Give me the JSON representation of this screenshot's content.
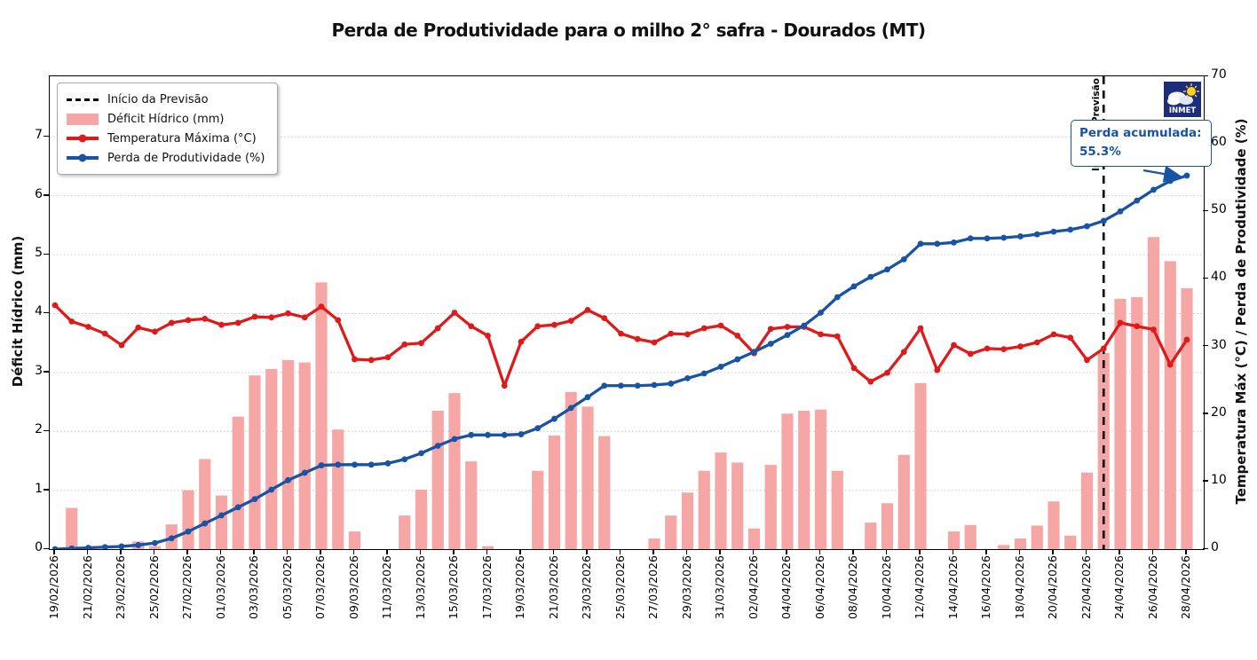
{
  "title": "Perda de Produtividade para o milho 2° safra - Dourados (MT)",
  "legend": {
    "forecast_label": "Início da Previsão",
    "deficit_label": "Déficit Hídrico (mm)",
    "temp_label": "Temperatura Máxima (°C)",
    "loss_label": "Perda de Produtividade (%)"
  },
  "axes": {
    "left_label": "Déficit Hídrico (mm)",
    "right_label": "Temperatura Máx (°C) / Perda de Produtividade (%)",
    "left_ticks": [
      0,
      1,
      2,
      3,
      4,
      5,
      6,
      7
    ],
    "right_ticks": [
      0,
      10,
      20,
      30,
      40,
      50,
      60,
      70
    ],
    "left_max": 8.03,
    "right_max": 70
  },
  "annotation": {
    "line1": "Perda acumulada:",
    "line2": "55.3%"
  },
  "forecast_line": {
    "label": "Início da Previsão",
    "date": "23/04/2026"
  },
  "logo": {
    "text": "INMET"
  },
  "colors": {
    "bar": "#f7a6a6",
    "temp_line": "#e01a1a",
    "loss_line": "#1853a4",
    "forecast_dash": "#000000",
    "grid": "#c9c9c9",
    "annotation_blue": "#1853a4",
    "logo_bg": "#1c2e7b",
    "logo_sun": "#ffd21f"
  },
  "chart_data": {
    "type": "mixed bar+line",
    "x_tick_step": 2,
    "x": [
      "19/02/2026",
      "20/02/2026",
      "21/02/2026",
      "22/02/2026",
      "23/02/2026",
      "24/02/2026",
      "25/02/2026",
      "26/02/2026",
      "27/02/2026",
      "28/02/2026",
      "01/03/2026",
      "02/03/2026",
      "03/03/2026",
      "04/03/2026",
      "05/03/2026",
      "06/03/2026",
      "07/03/2026",
      "08/03/2026",
      "09/03/2026",
      "10/03/2026",
      "11/03/2026",
      "12/03/2026",
      "13/03/2026",
      "14/03/2026",
      "15/03/2026",
      "16/03/2026",
      "17/03/2026",
      "18/03/2026",
      "19/03/2026",
      "20/03/2026",
      "21/03/2026",
      "22/03/2026",
      "23/03/2026",
      "24/03/2026",
      "25/03/2026",
      "26/03/2026",
      "27/03/2026",
      "28/03/2026",
      "29/03/2026",
      "30/03/2026",
      "31/03/2026",
      "01/04/2026",
      "02/04/2026",
      "03/04/2026",
      "04/04/2026",
      "05/04/2026",
      "06/04/2026",
      "07/04/2026",
      "08/04/2026",
      "09/04/2026",
      "10/04/2026",
      "11/04/2026",
      "12/04/2026",
      "13/04/2026",
      "14/04/2026",
      "15/04/2026",
      "16/04/2026",
      "17/04/2026",
      "18/04/2026",
      "19/04/2026",
      "20/04/2026",
      "21/04/2026",
      "22/04/2026",
      "23/04/2026",
      "24/04/2026",
      "25/04/2026",
      "26/04/2026",
      "27/04/2026",
      "28/04/2026"
    ],
    "series": [
      {
        "name": "Déficit Hídrico (mm)",
        "type": "bar",
        "axis": "left",
        "values": [
          0,
          0.7,
          0,
          0,
          0,
          0.13,
          0.05,
          0.42,
          1.0,
          1.53,
          0.91,
          2.25,
          2.95,
          3.06,
          3.21,
          3.17,
          4.53,
          2.03,
          0.3,
          0,
          0,
          0.57,
          1.01,
          2.35,
          2.65,
          1.49,
          0.05,
          0,
          0,
          1.33,
          1.93,
          2.67,
          2.42,
          1.92,
          0,
          0,
          0.18,
          0.57,
          0.96,
          1.33,
          1.64,
          1.47,
          0.35,
          1.43,
          2.3,
          2.35,
          2.37,
          1.33,
          0,
          0.45,
          0.78,
          1.6,
          2.82,
          0,
          0.3,
          0.41,
          0,
          0.07,
          0.18,
          0.4,
          0.81,
          0.23,
          1.3,
          3.33,
          4.25,
          4.28,
          5.3,
          4.89,
          4.43
        ]
      },
      {
        "name": "Temperatura Máxima (°C)",
        "type": "line",
        "axis": "right",
        "values": [
          36.1,
          33.7,
          32.9,
          31.9,
          30.2,
          32.8,
          32.2,
          33.5,
          33.9,
          34.1,
          33.2,
          33.5,
          34.4,
          34.3,
          34.9,
          34.3,
          35.9,
          33.9,
          28.1,
          28.0,
          28.4,
          30.3,
          30.5,
          32.7,
          35.0,
          33.0,
          31.6,
          24.2,
          30.7,
          33.0,
          33.2,
          33.8,
          35.4,
          34.2,
          31.9,
          31.1,
          30.6,
          31.9,
          31.8,
          32.7,
          33.1,
          31.6,
          29.0,
          32.6,
          32.9,
          32.9,
          31.8,
          31.5,
          26.8,
          24.8,
          26.1,
          29.2,
          32.7,
          26.5,
          30.2,
          28.9,
          29.7,
          29.6,
          30.0,
          30.6,
          31.8,
          31.3,
          28.0,
          29.7,
          33.5,
          33.0,
          32.5,
          27.3,
          31.0
        ]
      },
      {
        "name": "Perda de Produtividade (%)",
        "type": "line",
        "axis": "right",
        "values": [
          0.0,
          0.1,
          0.2,
          0.3,
          0.4,
          0.6,
          0.9,
          1.6,
          2.6,
          3.8,
          5.0,
          6.2,
          7.4,
          8.8,
          10.2,
          11.3,
          12.4,
          12.5,
          12.5,
          12.5,
          12.7,
          13.3,
          14.2,
          15.3,
          16.3,
          16.9,
          16.9,
          16.9,
          17.0,
          17.9,
          19.3,
          20.9,
          22.5,
          24.2,
          24.2,
          24.2,
          24.3,
          24.5,
          25.3,
          26.0,
          27.0,
          28.1,
          29.2,
          30.4,
          31.7,
          33.1,
          35.0,
          37.3,
          38.9,
          40.3,
          41.4,
          42.9,
          45.2,
          45.2,
          45.4,
          46.0,
          46.0,
          46.1,
          46.3,
          46.6,
          47.0,
          47.3,
          47.8,
          48.6,
          50.0,
          51.6,
          53.2,
          54.5,
          55.3
        ]
      }
    ],
    "forecast_start_index": 63,
    "final_loss_pct": 55.3,
    "grid": "horizontal dotted at left-axis integers",
    "legend_position": "upper left"
  }
}
